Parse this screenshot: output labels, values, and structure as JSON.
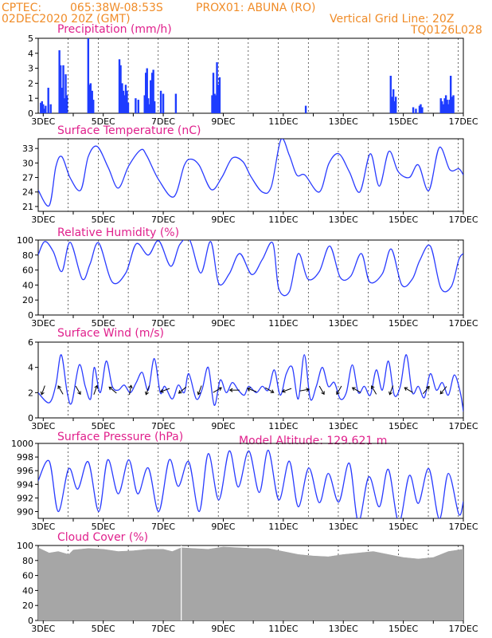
{
  "header": {
    "source": "CPTEC:",
    "coords": "065:38W-08:53S",
    "station": "PROX01: ABUNA (RO)",
    "init": "02DEC2020 20Z (GMT)",
    "grid_note": "Vertical Grid Line: 20Z",
    "run_code": "TQ0126L028"
  },
  "x_axis": {
    "labels": [
      "3DEC",
      "5DEC",
      "7DEC",
      "9DEC",
      "11DEC",
      "13DEC",
      "15DEC",
      "17DEC"
    ],
    "start_day": 2.833,
    "end_day": 17.0
  },
  "colors": {
    "line": "#2a3cff",
    "bar": "#1e3cff",
    "cloud": "#a6a6a6",
    "arrow": "#000000"
  },
  "chart_data": [
    {
      "name": "precipitation",
      "type": "bar",
      "title": "Precipitation (mm/h)",
      "ylim": [
        0,
        5
      ],
      "yticks": [
        0,
        1,
        2,
        3,
        4,
        5
      ],
      "x_unit": "day of December 2020 (decimal)",
      "x": [
        2.92,
        2.96,
        3.0,
        3.04,
        3.08,
        3.17,
        3.25,
        3.54,
        3.58,
        3.63,
        3.67,
        3.71,
        3.75,
        3.79,
        4.5,
        4.54,
        4.58,
        4.63,
        4.67,
        5.54,
        5.58,
        5.63,
        5.67,
        5.71,
        5.75,
        5.79,
        5.83,
        6.08,
        6.17,
        6.38,
        6.42,
        6.46,
        6.5,
        6.54,
        6.58,
        6.63,
        6.67,
        6.71,
        6.92,
        7.0,
        7.42,
        8.63,
        8.67,
        8.71,
        8.75,
        8.79,
        8.83,
        8.88,
        11.75,
        14.58,
        14.63,
        14.67,
        14.71,
        14.75,
        15.33,
        15.42,
        15.54,
        15.58,
        15.63,
        16.25,
        16.29,
        16.33,
        16.38,
        16.42,
        16.46,
        16.5,
        16.54,
        16.58,
        16.63,
        16.67
      ],
      "values": [
        0.7,
        0.8,
        0.6,
        0.3,
        0.5,
        1.7,
        0.6,
        4.2,
        3.2,
        1.7,
        3.2,
        1.0,
        2.6,
        1.2,
        5.0,
        1.9,
        2.0,
        1.5,
        0.9,
        3.6,
        3.2,
        2.0,
        1.5,
        1.2,
        1.9,
        1.5,
        0.7,
        1.0,
        0.9,
        1.2,
        2.7,
        3.0,
        1.0,
        0.6,
        2.2,
        2.7,
        2.9,
        0.8,
        1.5,
        1.3,
        1.3,
        1.2,
        2.7,
        1.3,
        1.2,
        3.4,
        1.9,
        2.4,
        0.5,
        2.5,
        1.1,
        1.6,
        0.8,
        1.1,
        0.4,
        0.3,
        0.5,
        0.6,
        0.4,
        1.0,
        0.8,
        0.6,
        1.0,
        1.2,
        0.9,
        0.6,
        0.9,
        2.5,
        1.1,
        1.2
      ]
    },
    {
      "name": "temperature",
      "type": "line",
      "title": "Surface Temperature (nC)",
      "ylim": [
        20,
        35
      ],
      "yticks": [
        21,
        24,
        27,
        30,
        33
      ],
      "x_unit": "day of December 2020 (decimal)",
      "x": [
        2.83,
        3.2,
        3.42,
        3.62,
        3.9,
        4.25,
        4.5,
        4.8,
        5.17,
        5.5,
        5.85,
        6.25,
        6.45,
        6.85,
        7.35,
        7.7,
        7.92,
        8.2,
        8.6,
        8.95,
        9.3,
        9.65,
        9.92,
        10.3,
        10.6,
        10.92,
        11.2,
        11.45,
        11.72,
        12.2,
        12.52,
        12.85,
        13.2,
        13.55,
        13.9,
        14.2,
        14.52,
        14.83,
        15.2,
        15.5,
        15.85,
        16.2,
        16.55,
        16.85,
        17.0
      ],
      "values": [
        24.4,
        21.2,
        29.2,
        31.3,
        26.9,
        24.4,
        31.3,
        33.4,
        29.0,
        24.8,
        29.4,
        32.7,
        31.5,
        26.5,
        23.0,
        29.5,
        30.8,
        29.5,
        24.5,
        27.0,
        31.0,
        30.3,
        27.2,
        24.0,
        25.1,
        34.8,
        31.6,
        27.5,
        27.5,
        24.0,
        29.9,
        31.9,
        28.2,
        24.0,
        31.9,
        25.2,
        32.4,
        28.2,
        27.0,
        29.6,
        24.3,
        33.2,
        28.6,
        28.8,
        27.5
      ]
    },
    {
      "name": "humidity",
      "type": "line",
      "title": "Relative Humidity (%)",
      "ylim": [
        0,
        100
      ],
      "yticks": [
        0,
        20,
        40,
        60,
        80,
        100
      ],
      "x_unit": "day of December 2020 (decimal)",
      "x": [
        2.83,
        3.05,
        3.33,
        3.62,
        3.9,
        4.3,
        4.56,
        4.85,
        5.3,
        5.75,
        6.1,
        6.5,
        6.85,
        7.25,
        7.55,
        7.88,
        8.25,
        8.58,
        8.85,
        9.2,
        9.55,
        9.95,
        10.3,
        10.65,
        10.85,
        11.2,
        11.5,
        11.82,
        12.2,
        12.55,
        12.9,
        13.25,
        13.6,
        13.88,
        14.3,
        14.6,
        14.95,
        15.3,
        15.55,
        15.9,
        16.25,
        16.6,
        16.85,
        17.0
      ],
      "values": [
        80,
        98,
        85,
        58,
        97,
        48,
        68,
        96,
        44,
        56,
        95,
        80,
        99,
        65,
        94,
        100,
        56,
        98,
        42,
        55,
        82,
        54,
        74,
        96,
        35,
        31,
        82,
        48,
        58,
        92,
        50,
        52,
        82,
        44,
        55,
        88,
        40,
        48,
        73,
        92,
        36,
        38,
        74,
        82
      ]
    },
    {
      "name": "wind",
      "type": "line",
      "title": "Surface Wind (m/s)",
      "ylim": [
        0,
        6
      ],
      "yticks": [
        0,
        2,
        4,
        6
      ],
      "x_unit": "day of December 2020 (decimal)",
      "x": [
        2.83,
        3.2,
        3.42,
        3.6,
        3.8,
        3.95,
        4.2,
        4.4,
        4.58,
        4.7,
        4.9,
        5.1,
        5.3,
        5.5,
        5.7,
        5.9,
        6.1,
        6.3,
        6.5,
        6.7,
        6.9,
        7.05,
        7.3,
        7.5,
        7.7,
        7.85,
        8.1,
        8.3,
        8.5,
        8.7,
        8.9,
        9.1,
        9.3,
        9.5,
        9.7,
        9.85,
        10.1,
        10.3,
        10.5,
        10.7,
        10.9,
        11.1,
        11.3,
        11.5,
        11.7,
        11.9,
        12.1,
        12.3,
        12.5,
        12.7,
        12.9,
        13.1,
        13.3,
        13.5,
        13.7,
        13.9,
        14.1,
        14.3,
        14.5,
        14.7,
        14.9,
        15.1,
        15.3,
        15.5,
        15.7,
        15.9,
        16.1,
        16.3,
        16.5,
        16.7,
        16.9,
        17.0
      ],
      "values": [
        2.0,
        1.2,
        2.6,
        5.0,
        2.0,
        1.2,
        4.2,
        2.5,
        1.5,
        4.0,
        2.0,
        4.5,
        2.5,
        2.2,
        2.6,
        2.0,
        2.8,
        3.6,
        2.2,
        4.7,
        2.0,
        2.5,
        1.5,
        2.6,
        2.0,
        3.5,
        1.5,
        2.3,
        4.0,
        1.0,
        3.0,
        2.0,
        2.8,
        2.2,
        1.8,
        2.5,
        2.0,
        2.5,
        2.2,
        3.8,
        1.8,
        3.5,
        4.0,
        1.5,
        5.0,
        1.5,
        2.5,
        4.0,
        2.5,
        2.8,
        1.5,
        2.0,
        4.2,
        2.0,
        2.5,
        1.8,
        3.8,
        2.2,
        4.5,
        1.8,
        2.5,
        5.0,
        2.0,
        2.5,
        1.6,
        3.5,
        2.2,
        2.8,
        1.8,
        3.4,
        2.0,
        0.5
      ]
    },
    {
      "name": "pressure",
      "type": "line",
      "title": "Surface Pressure (hPa)",
      "ylim": [
        989,
        1000
      ],
      "yticks": [
        990,
        992,
        994,
        996,
        998,
        1000
      ],
      "x_unit": "day of December 2020 (decimal)",
      "x": [
        2.83,
        3.2,
        3.5,
        3.85,
        4.15,
        4.5,
        4.85,
        5.15,
        5.5,
        5.85,
        6.15,
        6.5,
        6.85,
        7.2,
        7.5,
        7.85,
        8.2,
        8.5,
        8.85,
        9.2,
        9.5,
        9.85,
        10.2,
        10.5,
        10.85,
        11.2,
        11.5,
        11.85,
        12.2,
        12.5,
        12.85,
        13.2,
        13.5,
        13.85,
        14.2,
        14.5,
        14.85,
        15.2,
        15.5,
        15.85,
        16.2,
        16.5,
        16.85,
        17.0
      ],
      "values": [
        994.5,
        997.4,
        990.0,
        996.3,
        993.3,
        997.3,
        990.0,
        997.6,
        992.6,
        997.6,
        992.6,
        996.4,
        990.0,
        997.6,
        993.7,
        997.3,
        990.0,
        998.5,
        991.7,
        998.9,
        993.6,
        998.9,
        992.8,
        999.0,
        991.7,
        997.4,
        990.7,
        996.4,
        991.3,
        995.6,
        991.4,
        997.1,
        988.5,
        995.1,
        990.7,
        996.2,
        988.4,
        995.3,
        991.2,
        996.3,
        988.9,
        995.6,
        989.6,
        991.5
      ]
    },
    {
      "name": "cloud_cover",
      "type": "area",
      "title": "Cloud Cover (%)",
      "ylim": [
        0,
        100
      ],
      "yticks": [
        0,
        20,
        40,
        60,
        80,
        100
      ],
      "x_unit": "day of December 2020 (decimal)",
      "x": [
        2.83,
        3.2,
        3.5,
        3.85,
        4.0,
        4.5,
        5.0,
        5.5,
        6.0,
        6.5,
        7.0,
        7.3,
        7.6,
        8.0,
        8.5,
        9.0,
        9.5,
        10.0,
        10.5,
        11.0,
        11.5,
        12.0,
        12.5,
        13.0,
        13.5,
        14.0,
        14.5,
        15.0,
        15.5,
        16.0,
        16.5,
        17.0
      ],
      "values": [
        97,
        90,
        92,
        88,
        94,
        96,
        95,
        92,
        93,
        95,
        95,
        92,
        97,
        96,
        95,
        98,
        97,
        96,
        96,
        92,
        88,
        86,
        85,
        88,
        90,
        92,
        88,
        84,
        82,
        84,
        92,
        95
      ]
    }
  ],
  "panels": {
    "wind_title": "Surface Wind (m/s)",
    "pressure_title": "Surface Pressure (hPa)",
    "altitude_note": "Model Altitude: 129.621 m"
  }
}
